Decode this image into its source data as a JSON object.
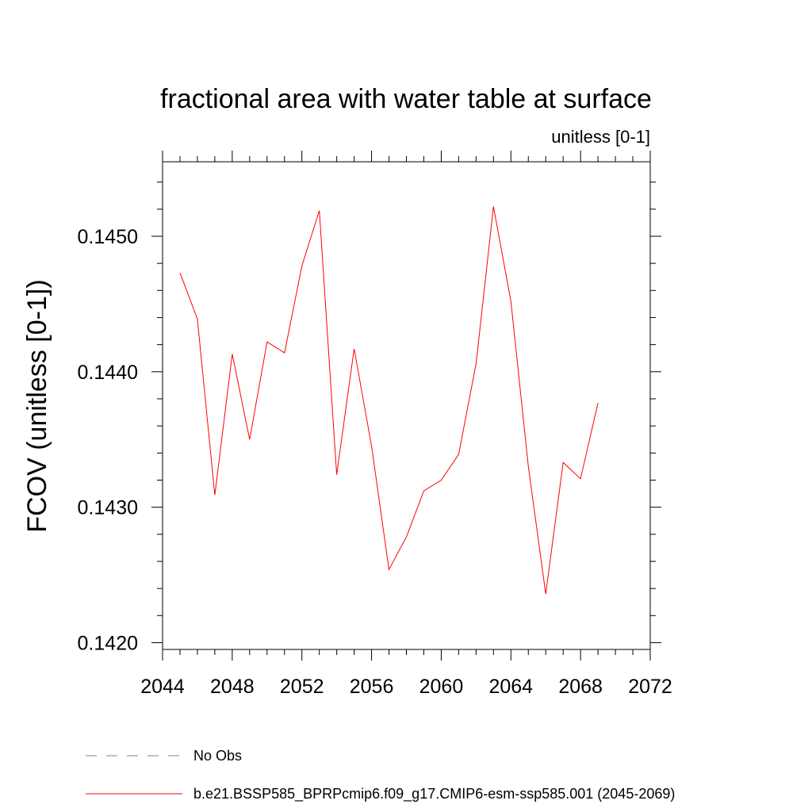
{
  "chart_data": {
    "type": "line",
    "title": "fractional area with water table at surface",
    "subtitle": "unitless [0-1]",
    "xlabel": "",
    "ylabel": "FCOV  (unitless [0-1])",
    "xlim": [
      2044,
      2072
    ],
    "ylim": [
      0.14195,
      0.14555
    ],
    "x_ticks": [
      "2044",
      "2048",
      "2052",
      "2056",
      "2060",
      "2064",
      "2068",
      "2072"
    ],
    "y_ticks": [
      "0.1420",
      "0.1430",
      "0.1440",
      "0.1450"
    ],
    "grid": false,
    "series": [
      {
        "name": "b.e21.BSSP585_BPRPcmip6.f09_g17.CMIP6-esm-ssp585.001 (2045-2069)",
        "color": "#ff0000",
        "dash": "solid",
        "x": [
          2045,
          2046,
          2047,
          2048,
          2049,
          2050,
          2051,
          2052,
          2053,
          2054,
          2055,
          2056,
          2057,
          2058,
          2059,
          2060,
          2061,
          2062,
          2063,
          2064,
          2065,
          2066,
          2067,
          2068,
          2069
        ],
        "y": [
          0.14473,
          0.14439,
          0.14309,
          0.14413,
          0.1435,
          0.14422,
          0.14414,
          0.14478,
          0.14519,
          0.14324,
          0.14417,
          0.14345,
          0.14254,
          0.14278,
          0.14312,
          0.1432,
          0.14339,
          0.14406,
          0.14522,
          0.14452,
          0.1433,
          0.14236,
          0.14333,
          0.14321,
          0.14377
        ]
      }
    ],
    "legend": [
      {
        "label": "No Obs",
        "color": "#8877bb",
        "dash": "dashed"
      },
      {
        "label": "b.e21.BSSP585_BPRPcmip6.f09_g17.CMIP6-esm-ssp585.001 (2045-2069)",
        "color": "#ff0000",
        "dash": "solid"
      }
    ],
    "legend_position": "bottom"
  }
}
